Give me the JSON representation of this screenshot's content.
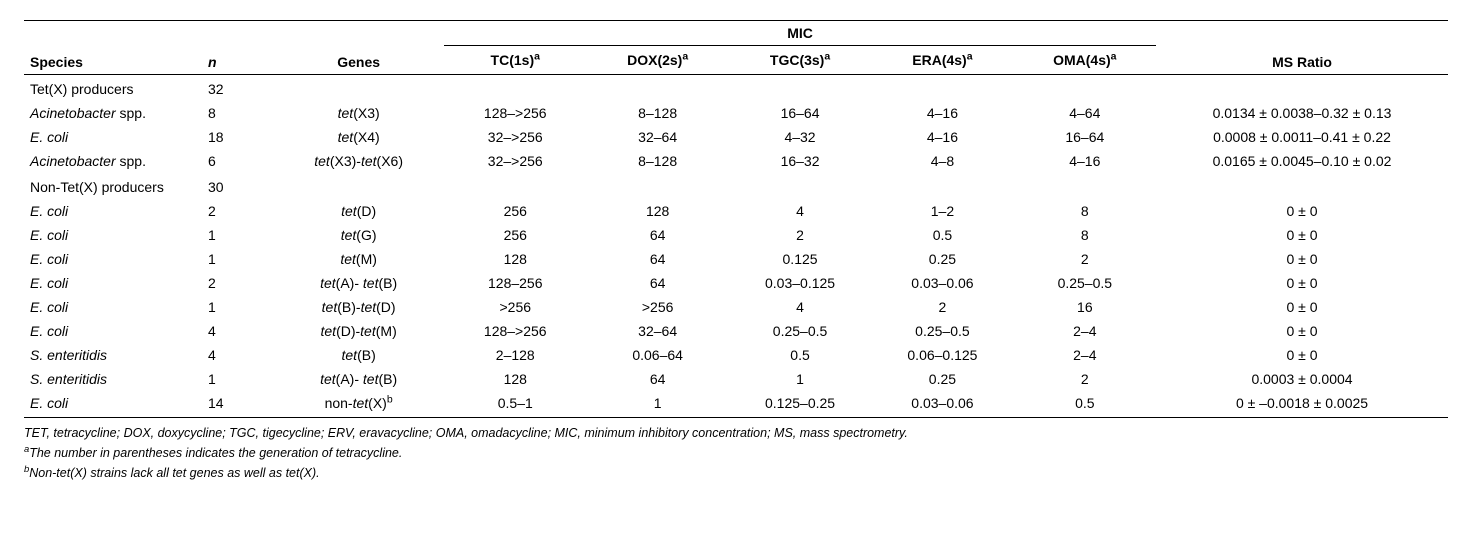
{
  "headers": {
    "species": "Species",
    "n": "n",
    "genes": "Genes",
    "mic_group": "MIC",
    "mic_cols": [
      {
        "prefix": "TC(1s)",
        "sup": "a"
      },
      {
        "prefix": "DOX(2s)",
        "sup": "a"
      },
      {
        "prefix": "TGC(3s)",
        "sup": "a"
      },
      {
        "prefix": "ERA(4s)",
        "sup": "a"
      },
      {
        "prefix": "OMA(4s)",
        "sup": "a"
      }
    ],
    "ms": "MS Ratio"
  },
  "groups": [
    {
      "label": "Tet(X) producers",
      "n": "32",
      "rows": [
        {
          "species_html": "<em>Acinetobacter</em> spp.",
          "n": "8",
          "genes_html": "<em>tet</em>(X3)",
          "mic": [
            "128–>256",
            "8–128",
            "16–64",
            "4–16",
            "4–64"
          ],
          "ms": "0.0134 ± 0.0038–0.32 ± 0.13"
        },
        {
          "species_html": "<em>E. coli</em>",
          "n": "18",
          "genes_html": "<em>tet</em>(X4)",
          "mic": [
            "32–>256",
            "32–64",
            "4–32",
            "4–16",
            "16–64"
          ],
          "ms": "0.0008 ± 0.0011–0.41 ± 0.22"
        },
        {
          "species_html": "<em>Acinetobacter</em> spp.",
          "n": "6",
          "genes_html": "<em>tet</em>(X3)-<em>tet</em>(X6)",
          "mic": [
            "32–>256",
            "8–128",
            "16–32",
            "4–8",
            "4–16"
          ],
          "ms": "0.0165 ± 0.0045–0.10 ± 0.02"
        }
      ]
    },
    {
      "label": "Non-Tet(X) producers",
      "n": "30",
      "rows": [
        {
          "species_html": "<em>E. coli</em>",
          "n": "2",
          "genes_html": "<em>tet</em>(D)",
          "mic": [
            "256",
            "128",
            "4",
            "1–2",
            "8"
          ],
          "ms": "0 ± 0"
        },
        {
          "species_html": "<em>E. coli</em>",
          "n": "1",
          "genes_html": "<em>tet</em>(G)",
          "mic": [
            "256",
            "64",
            "2",
            "0.5",
            "8"
          ],
          "ms": "0 ± 0"
        },
        {
          "species_html": "<em>E. coli</em>",
          "n": "1",
          "genes_html": "<em>tet</em>(M)",
          "mic": [
            "128",
            "64",
            "0.125",
            "0.25",
            "2"
          ],
          "ms": "0 ± 0"
        },
        {
          "species_html": "<em>E. coli</em>",
          "n": "2",
          "genes_html": "<em>tet</em>(A)- <em>tet</em>(B)",
          "mic": [
            "128–256",
            "64",
            "0.03–0.125",
            "0.03–0.06",
            "0.25–0.5"
          ],
          "ms": "0 ± 0"
        },
        {
          "species_html": "<em>E. coli</em>",
          "n": "1",
          "genes_html": "<em>tet</em>(B)-<em>tet</em>(D)",
          "mic": [
            ">256",
            ">256",
            "4",
            "2",
            "16"
          ],
          "ms": "0 ± 0"
        },
        {
          "species_html": "<em>E. coli</em>",
          "n": "4",
          "genes_html": "<em>tet</em>(D)-<em>tet</em>(M)",
          "mic": [
            "128–>256",
            "32–64",
            "0.25–0.5",
            "0.25–0.5",
            "2–4"
          ],
          "ms": "0 ± 0"
        },
        {
          "species_html": "<em>S. enteritidis</em>",
          "n": "4",
          "genes_html": "<em>tet</em>(B)",
          "mic": [
            "2–128",
            "0.06–64",
            "0.5",
            "0.06–0.125",
            "2–4"
          ],
          "ms": "0 ± 0"
        },
        {
          "species_html": "<em>S. enteritidis</em>",
          "n": "1",
          "genes_html": "<em>tet</em>(A)- <em>tet</em>(B)",
          "mic": [
            "128",
            "64",
            "1",
            "0.25",
            "2"
          ],
          "ms": "0.0003 ± 0.0004"
        },
        {
          "species_html": "<em>E. coli</em>",
          "n": "14",
          "genes_html": "non-<em>tet</em>(X)<sup>b</sup>",
          "mic": [
            "0.5–1",
            "1",
            "0.125–0.25",
            "0.03–0.06",
            "0.5"
          ],
          "ms": "0 ± –0.0018 ± 0.0025"
        }
      ]
    }
  ],
  "footnotes": {
    "abbrev": "TET, tetracycline; DOX, doxycycline; TGC, tigecycline; ERV, eravacycline; OMA, omadacycline; MIC, minimum inhibitory concentration; MS, mass spectrometry.",
    "a": {
      "sup": "a",
      "text": "The number in parentheses indicates the generation of tetracycline."
    },
    "b": {
      "sup": "b",
      "text": "Non-tet(X) strains lack all tet genes as well as tet(X)."
    }
  }
}
